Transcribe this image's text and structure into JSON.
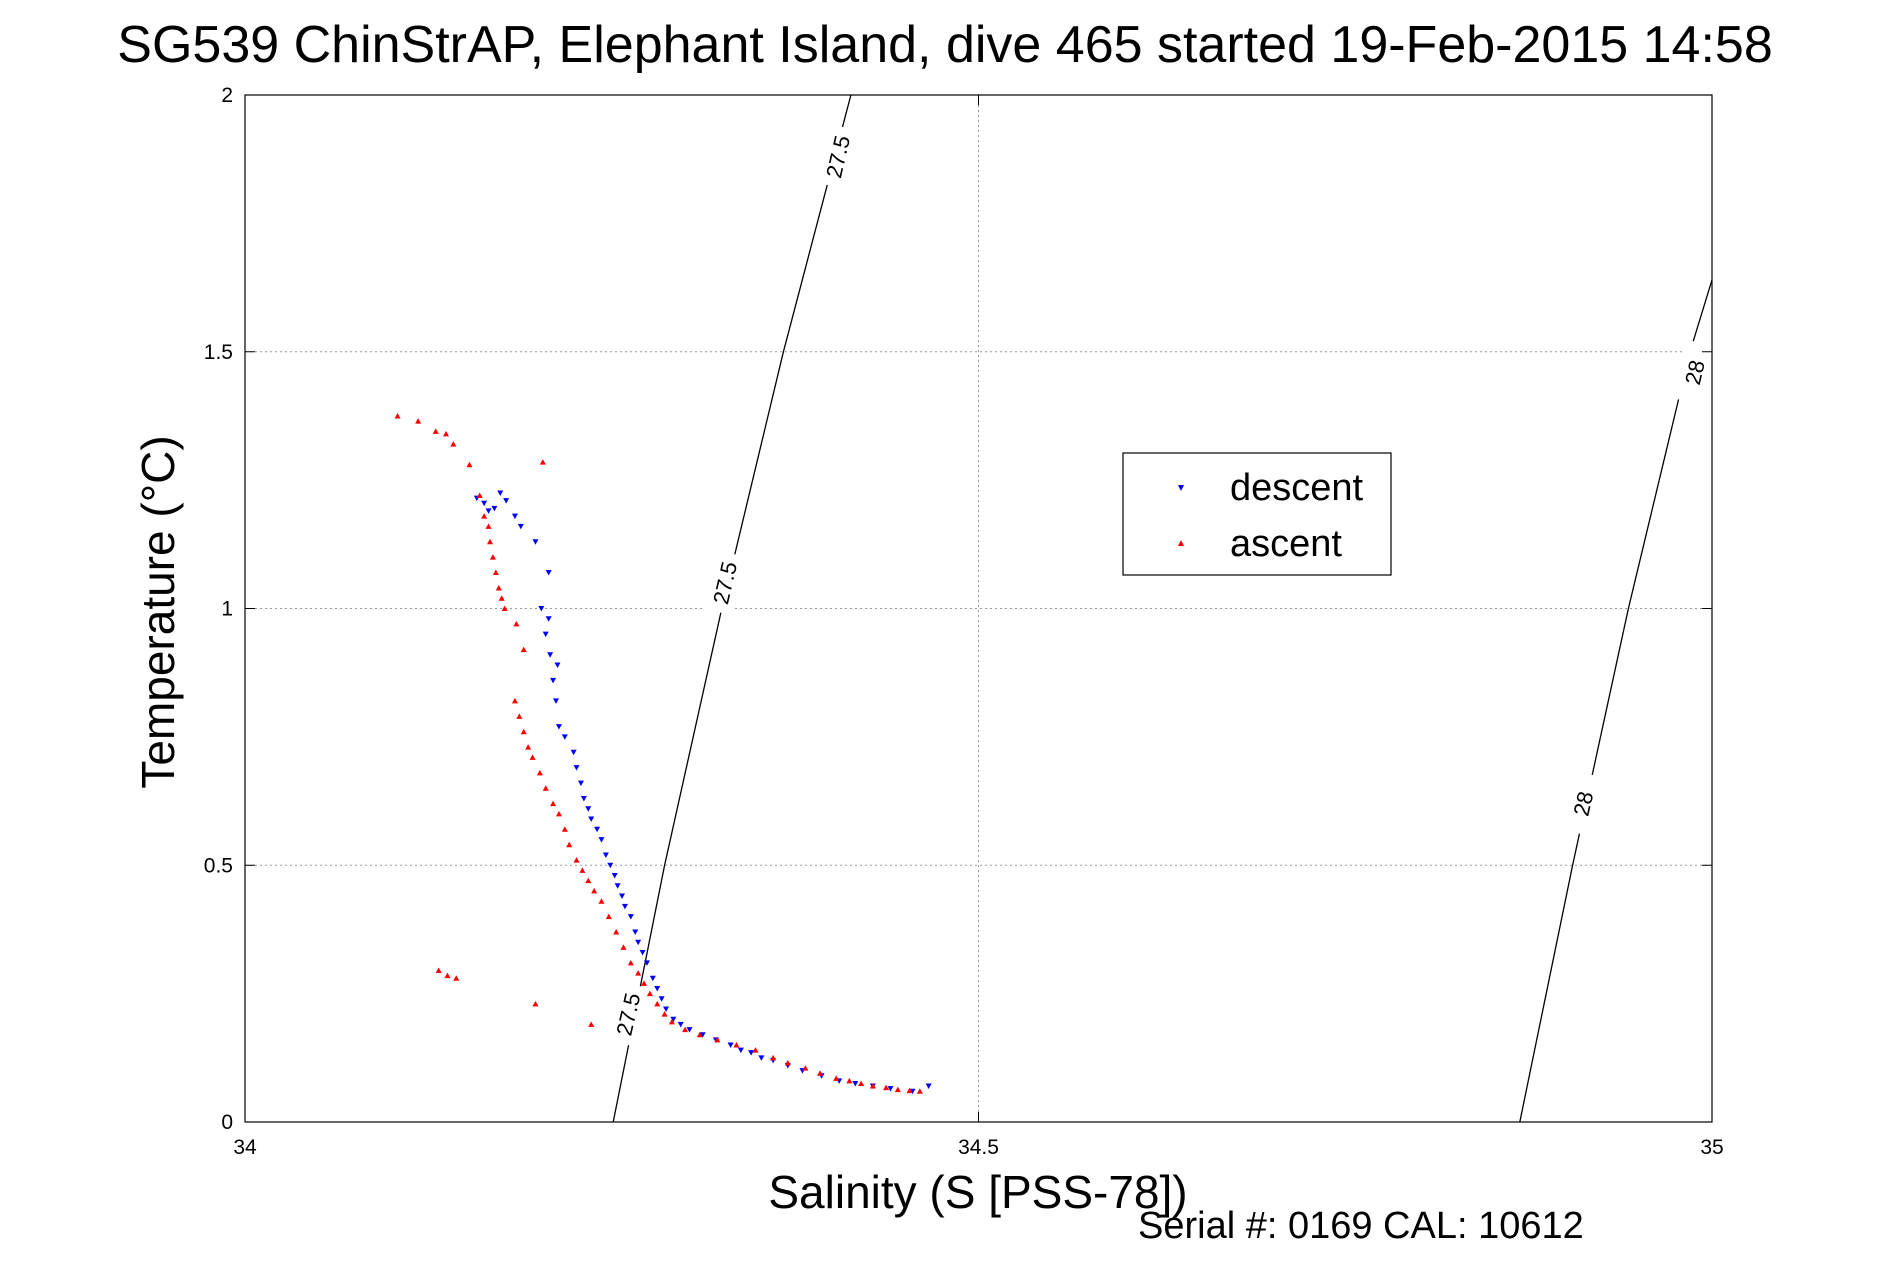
{
  "chart_data": {
    "type": "scatter",
    "title": "SG539 ChinStrAP, Elephant Island, dive 465 started 19-Feb-2015 14:58",
    "xlabel": "Salinity (S [PSS-78])",
    "ylabel": "Temperature (°C)",
    "xlim": [
      34,
      35
    ],
    "ylim": [
      0,
      2
    ],
    "xticks": [
      "34",
      "34.5",
      "35"
    ],
    "yticks": [
      "0",
      "0.5",
      "1",
      "1.5",
      "2"
    ],
    "grid": true,
    "legend_position": "inside-right",
    "series": [
      {
        "name": "descent",
        "color": "#0000ff",
        "marker": "triangle-down",
        "points": [
          [
            34.158,
            1.215
          ],
          [
            34.163,
            1.205
          ],
          [
            34.166,
            1.19
          ],
          [
            34.17,
            1.195
          ],
          [
            34.174,
            1.225
          ],
          [
            34.178,
            1.21
          ],
          [
            34.184,
            1.18
          ],
          [
            34.188,
            1.16
          ],
          [
            34.198,
            1.13
          ],
          [
            34.207,
            1.07
          ],
          [
            34.202,
            1.0
          ],
          [
            34.207,
            0.98
          ],
          [
            34.205,
            0.95
          ],
          [
            34.208,
            0.91
          ],
          [
            34.213,
            0.89
          ],
          [
            34.21,
            0.86
          ],
          [
            34.212,
            0.82
          ],
          [
            34.214,
            0.77
          ],
          [
            34.218,
            0.75
          ],
          [
            34.224,
            0.72
          ],
          [
            34.226,
            0.69
          ],
          [
            34.229,
            0.66
          ],
          [
            34.231,
            0.63
          ],
          [
            34.234,
            0.61
          ],
          [
            34.236,
            0.59
          ],
          [
            34.24,
            0.57
          ],
          [
            34.243,
            0.55
          ],
          [
            34.246,
            0.52
          ],
          [
            34.249,
            0.5
          ],
          [
            34.252,
            0.48
          ],
          [
            34.254,
            0.46
          ],
          [
            34.257,
            0.44
          ],
          [
            34.259,
            0.42
          ],
          [
            34.263,
            0.4
          ],
          [
            34.266,
            0.37
          ],
          [
            34.268,
            0.35
          ],
          [
            34.271,
            0.33
          ],
          [
            34.274,
            0.31
          ],
          [
            34.278,
            0.28
          ],
          [
            34.281,
            0.26
          ],
          [
            34.284,
            0.24
          ],
          [
            34.287,
            0.22
          ],
          [
            34.292,
            0.2
          ],
          [
            34.297,
            0.19
          ],
          [
            34.303,
            0.18
          ],
          [
            34.312,
            0.17
          ],
          [
            34.321,
            0.16
          ],
          [
            34.331,
            0.15
          ],
          [
            34.338,
            0.14
          ],
          [
            34.345,
            0.135
          ],
          [
            34.352,
            0.125
          ],
          [
            34.36,
            0.12
          ],
          [
            34.37,
            0.11
          ],
          [
            34.38,
            0.1
          ],
          [
            34.393,
            0.09
          ],
          [
            34.405,
            0.08
          ],
          [
            34.416,
            0.075
          ],
          [
            34.428,
            0.07
          ],
          [
            34.44,
            0.065
          ],
          [
            34.455,
            0.06
          ],
          [
            34.466,
            0.07
          ]
        ]
      },
      {
        "name": "ascent",
        "color": "#ff0000",
        "marker": "triangle-up",
        "points": [
          [
            34.104,
            1.375
          ],
          [
            34.118,
            1.365
          ],
          [
            34.13,
            1.345
          ],
          [
            34.137,
            1.34
          ],
          [
            34.142,
            1.32
          ],
          [
            34.153,
            1.28
          ],
          [
            34.16,
            1.22
          ],
          [
            34.163,
            1.18
          ],
          [
            34.166,
            1.16
          ],
          [
            34.167,
            1.13
          ],
          [
            34.169,
            1.1
          ],
          [
            34.171,
            1.07
          ],
          [
            34.173,
            1.04
          ],
          [
            34.175,
            1.02
          ],
          [
            34.177,
            1.0
          ],
          [
            34.185,
            0.97
          ],
          [
            34.19,
            0.92
          ],
          [
            34.184,
            0.82
          ],
          [
            34.187,
            0.79
          ],
          [
            34.19,
            0.76
          ],
          [
            34.193,
            0.73
          ],
          [
            34.196,
            0.71
          ],
          [
            34.201,
            0.68
          ],
          [
            34.205,
            0.65
          ],
          [
            34.21,
            0.62
          ],
          [
            34.214,
            0.6
          ],
          [
            34.218,
            0.57
          ],
          [
            34.221,
            0.54
          ],
          [
            34.226,
            0.51
          ],
          [
            34.23,
            0.49
          ],
          [
            34.234,
            0.47
          ],
          [
            34.238,
            0.45
          ],
          [
            34.243,
            0.43
          ],
          [
            34.248,
            0.4
          ],
          [
            34.253,
            0.37
          ],
          [
            34.258,
            0.34
          ],
          [
            34.263,
            0.31
          ],
          [
            34.268,
            0.29
          ],
          [
            34.272,
            0.27
          ],
          [
            34.276,
            0.25
          ],
          [
            34.281,
            0.23
          ],
          [
            34.286,
            0.21
          ],
          [
            34.291,
            0.195
          ],
          [
            34.3,
            0.18
          ],
          [
            34.31,
            0.17
          ],
          [
            34.322,
            0.16
          ],
          [
            34.335,
            0.15
          ],
          [
            34.348,
            0.14
          ],
          [
            34.36,
            0.125
          ],
          [
            34.37,
            0.115
          ],
          [
            34.382,
            0.105
          ],
          [
            34.392,
            0.095
          ],
          [
            34.403,
            0.085
          ],
          [
            34.412,
            0.08
          ],
          [
            34.42,
            0.075
          ],
          [
            34.428,
            0.07
          ],
          [
            34.437,
            0.067
          ],
          [
            34.445,
            0.063
          ],
          [
            34.453,
            0.061
          ],
          [
            34.46,
            0.06
          ],
          [
            34.203,
            1.285
          ],
          [
            34.132,
            0.295
          ],
          [
            34.138,
            0.285
          ],
          [
            34.144,
            0.28
          ],
          [
            34.198,
            0.23
          ],
          [
            34.236,
            0.19
          ]
        ]
      }
    ],
    "isopycnals": [
      {
        "label": "27.5",
        "points": [
          [
            34.251,
            0.0
          ],
          [
            34.286,
            0.5
          ],
          [
            34.325,
            1.0
          ],
          [
            34.367,
            1.5
          ],
          [
            34.413,
            2.0
          ]
        ],
        "label_positions": [
          [
            34.261,
            0.21
          ],
          [
            34.327,
            1.05
          ],
          [
            34.404,
            1.88
          ]
        ]
      },
      {
        "label": "28",
        "points": [
          [
            34.869,
            0.0
          ],
          [
            34.905,
            0.5
          ],
          [
            34.943,
            1.0
          ],
          [
            34.985,
            1.5
          ],
          [
            35.0,
            1.64
          ]
        ],
        "label_positions": [
          [
            34.912,
            0.62
          ],
          [
            34.988,
            1.46
          ]
        ]
      }
    ]
  },
  "footer": {
    "serial_text": "Serial #: 0169 CAL: 10612"
  }
}
